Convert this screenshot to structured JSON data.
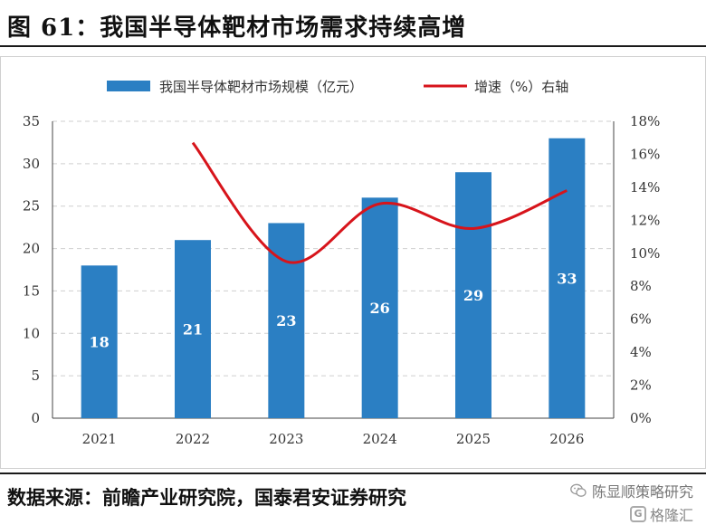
{
  "figure": {
    "title": "图 61：我国半导体靶材市场需求持续高增",
    "source": "数据来源：前瞻产业研究院，国泰君安证券研究"
  },
  "watermark": {
    "line1": "陈显顺策略研究",
    "logo_glyph": "G",
    "line2": "格隆汇",
    "icon": "wechat-icon"
  },
  "chart_data": {
    "type": "bar",
    "title": "",
    "categories": [
      "2021",
      "2022",
      "2023",
      "2024",
      "2025",
      "2026"
    ],
    "series": [
      {
        "name": "我国半导体靶材市场规模（亿元）",
        "type": "bar",
        "axis": "left",
        "color": "#2b7fc3",
        "values": [
          18,
          21,
          23,
          26,
          29,
          33
        ],
        "data_labels": [
          "18",
          "21",
          "23",
          "26",
          "29",
          "33"
        ]
      },
      {
        "name": "增速（%）右轴",
        "type": "line",
        "axis": "right",
        "color": "#d7141b",
        "smooth": true,
        "values": [
          null,
          16.7,
          9.5,
          13.0,
          11.5,
          13.8
        ]
      }
    ],
    "y_left": {
      "min": 0,
      "max": 35,
      "step": 5,
      "ticks": [
        "0",
        "5",
        "10",
        "15",
        "20",
        "25",
        "30",
        "35"
      ]
    },
    "y_right": {
      "min": 0,
      "max": 18,
      "step": 2,
      "ticks": [
        "0%",
        "2%",
        "4%",
        "6%",
        "8%",
        "10%",
        "12%",
        "14%",
        "16%",
        "18%"
      ]
    },
    "grid": true,
    "legend_position": "top"
  }
}
